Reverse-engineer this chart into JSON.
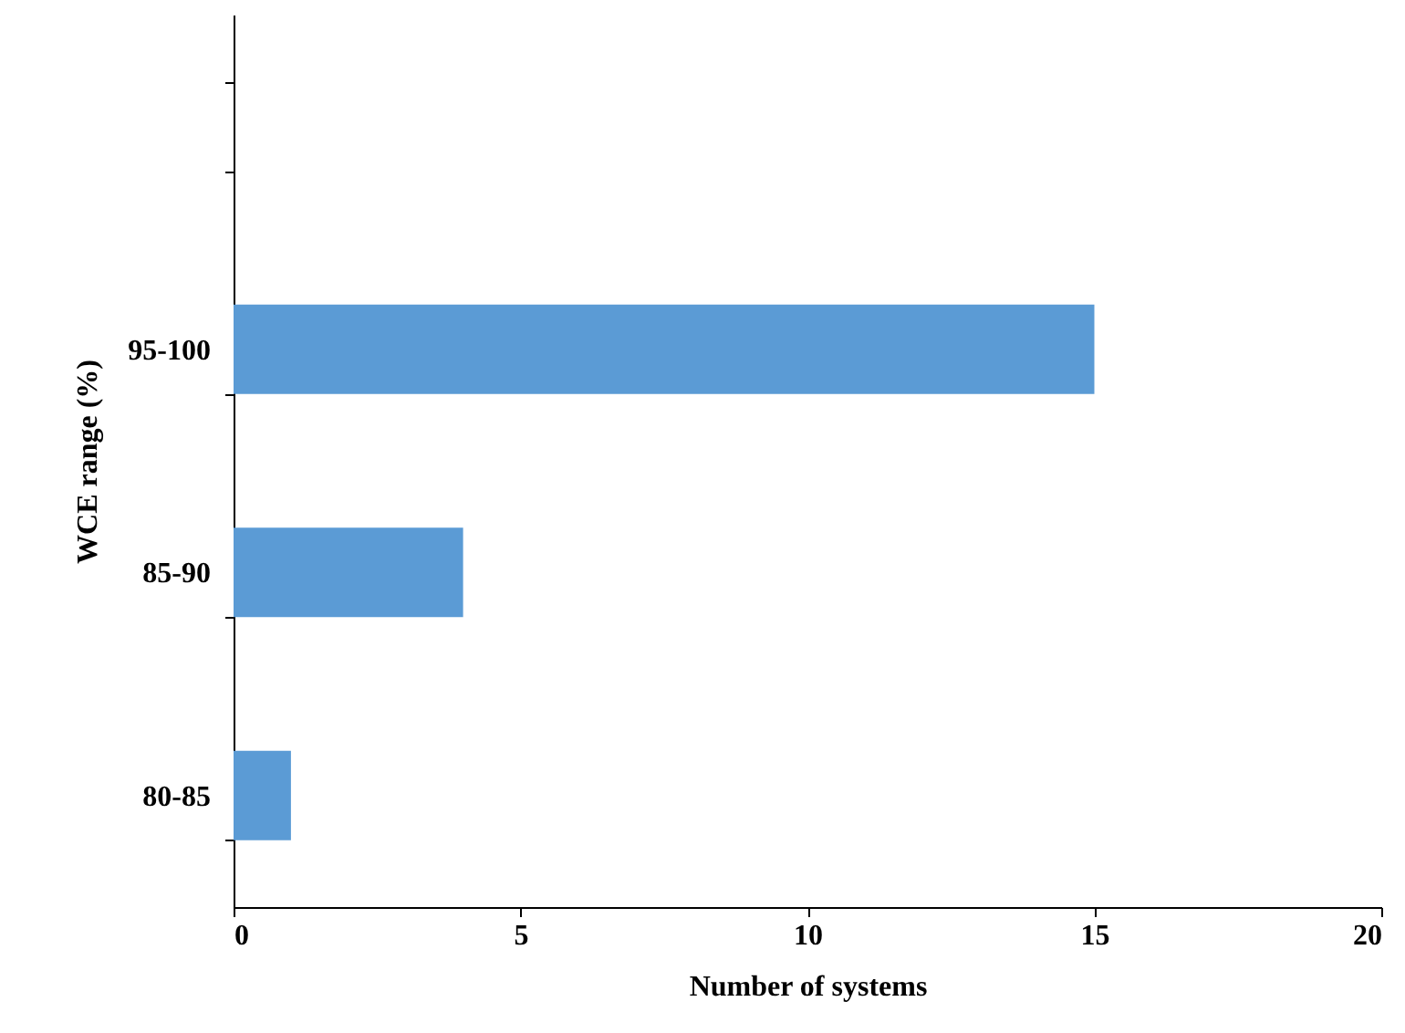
{
  "chart_data": {
    "type": "bar",
    "orientation": "horizontal",
    "xlabel": "Number of systems",
    "ylabel": "WCE range (%)",
    "categories": [
      null,
      "95-100",
      "85-90",
      "80-85"
    ],
    "values": [
      null,
      15,
      4,
      1
    ],
    "color": "#5b9bd5",
    "xlim": [
      0,
      20
    ],
    "xticks": [
      0,
      5,
      10,
      15,
      20
    ],
    "grid": false
  }
}
